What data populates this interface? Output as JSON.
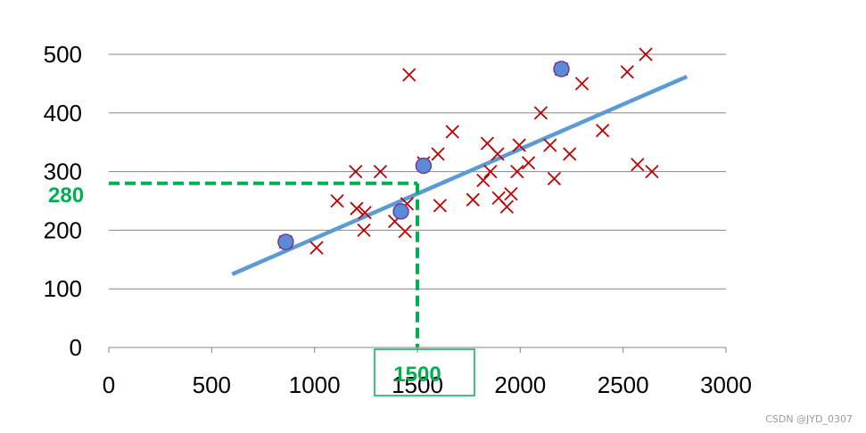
{
  "chart_data": {
    "type": "scatter",
    "title": "",
    "xlabel": "",
    "ylabel": "",
    "xlim": [
      0,
      3000
    ],
    "ylim": [
      0,
      500
    ],
    "x_ticks": [
      0,
      500,
      1000,
      1500,
      2000,
      2500,
      3000
    ],
    "y_ticks": [
      0,
      100,
      200,
      300,
      400,
      500
    ],
    "grid": "horizontal",
    "legend": "none",
    "series": [
      {
        "marker": "x",
        "color": "#C00000",
        "points": [
          [
            860,
            180
          ],
          [
            1010,
            170
          ],
          [
            1110,
            250
          ],
          [
            1200,
            300
          ],
          [
            1205,
            237
          ],
          [
            1240,
            200
          ],
          [
            1245,
            230
          ],
          [
            1320,
            300
          ],
          [
            1390,
            215
          ],
          [
            1440,
            198
          ],
          [
            1450,
            245
          ],
          [
            1460,
            465
          ],
          [
            1530,
            315
          ],
          [
            1600,
            330
          ],
          [
            1610,
            242
          ],
          [
            1670,
            368
          ],
          [
            1770,
            252
          ],
          [
            1820,
            285
          ],
          [
            1840,
            348
          ],
          [
            1855,
            300
          ],
          [
            1890,
            330
          ],
          [
            1895,
            255
          ],
          [
            1935,
            240
          ],
          [
            1955,
            262
          ],
          [
            1985,
            300
          ],
          [
            1995,
            345
          ],
          [
            2040,
            315
          ],
          [
            2100,
            400
          ],
          [
            2145,
            345
          ],
          [
            2165,
            288
          ],
          [
            2200,
            475
          ],
          [
            2240,
            330
          ],
          [
            2300,
            450
          ],
          [
            2400,
            370
          ],
          [
            2520,
            470
          ],
          [
            2570,
            312
          ],
          [
            2610,
            500
          ],
          [
            2640,
            300
          ]
        ]
      },
      {
        "marker": "circle",
        "color": "#5B8BD5",
        "points": [
          [
            860,
            180
          ],
          [
            1420,
            232
          ],
          [
            1530,
            310
          ],
          [
            2200,
            475
          ]
        ]
      }
    ],
    "fit_line": {
      "color": "#5B9BD5",
      "points": [
        [
          600,
          125
        ],
        [
          2810,
          462
        ]
      ]
    },
    "annotations": {
      "color": "#00B050",
      "x_value": 1500,
      "y_value": 280,
      "x_label": "1500",
      "y_label": "280"
    }
  },
  "watermark": "CSDN @JYD_0307"
}
